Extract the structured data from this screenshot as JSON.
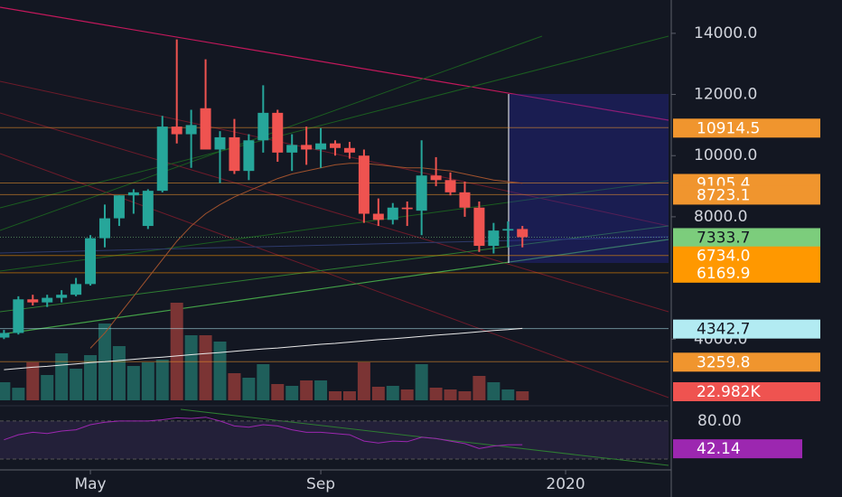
{
  "chart_data": {
    "type": "candlestick",
    "categories": [
      null,
      null,
      null,
      null,
      null,
      null,
      "May",
      null,
      null,
      null,
      null,
      null,
      null,
      null,
      null,
      null,
      null,
      null,
      null,
      null,
      null,
      null,
      "Sep",
      null,
      null,
      null,
      null,
      null,
      null,
      null,
      null,
      null,
      null,
      null,
      null,
      null,
      null,
      null,
      null,
      "2020"
    ],
    "open": [
      4050,
      4200,
      5300,
      5200,
      5350,
      5450,
      5800,
      7300,
      7950,
      8700,
      7700,
      8850,
      10950,
      10700,
      11550,
      10200,
      10600,
      9500,
      10500,
      11400,
      10100,
      10350,
      10200,
      10400,
      10250,
      10000,
      8100,
      7900,
      8300,
      8200,
      9350,
      9200,
      8800,
      8300,
      7050,
      7550,
      7600,
      null,
      null,
      null
    ],
    "high": [
      4300,
      5400,
      5450,
      5450,
      5600,
      6000,
      7400,
      8400,
      8700,
      8900,
      8900,
      11300,
      13800,
      11500,
      13150,
      10800,
      11200,
      10700,
      12300,
      11500,
      10700,
      10950,
      10900,
      10500,
      10450,
      10200,
      8600,
      8450,
      8500,
      10500,
      9950,
      9450,
      9150,
      8500,
      7800,
      7850,
      7700,
      null,
      null,
      null
    ],
    "low": [
      4000,
      4150,
      5100,
      5050,
      5200,
      5400,
      5750,
      7000,
      7700,
      8100,
      7600,
      8800,
      10400,
      9600,
      10300,
      9100,
      9400,
      9200,
      10100,
      9800,
      9500,
      9700,
      9600,
      10000,
      9900,
      7800,
      7700,
      7750,
      7700,
      7400,
      9000,
      8700,
      8000,
      6850,
      6800,
      7000,
      7000,
      null,
      null,
      null
    ],
    "close": [
      4200,
      5300,
      5200,
      5350,
      5450,
      5800,
      7300,
      7950,
      8700,
      8800,
      8850,
      10950,
      10700,
      11000,
      10200,
      10600,
      9500,
      10500,
      11400,
      10100,
      10350,
      10200,
      10400,
      10250,
      10100,
      8100,
      7900,
      8300,
      8250,
      9350,
      9200,
      8800,
      8300,
      7050,
      7550,
      7600,
      7333.7,
      null,
      null,
      null
    ],
    "volume": [
      46000,
      32000,
      96600,
      64400,
      119600,
      80500,
      115000,
      195500,
      138000,
      87400,
      96600,
      103500,
      248400,
      165600,
      165600,
      149500,
      69000,
      57500,
      92000,
      41400,
      36800,
      50600,
      50600,
      23000,
      23000,
      96600,
      34500,
      36800,
      27600,
      92000,
      32200,
      27600,
      23000,
      62100,
      46000,
      27600,
      22982,
      null,
      null,
      null
    ],
    "up_color": "#26a69a",
    "down_color": "#ef5350",
    "lines": [
      {
        "color": "#e8e8e8",
        "values": [
          3000,
          3040,
          3080,
          3110,
          3150,
          3190,
          3230,
          3260,
          3300,
          3340,
          3380,
          3410,
          3450,
          3490,
          3530,
          3560,
          3600,
          3640,
          3680,
          3710,
          3750,
          3790,
          3830,
          3860,
          3900,
          3940,
          3980,
          4010,
          4050,
          4090,
          4130,
          4160,
          4200,
          4240,
          4280,
          4310,
          4350,
          null,
          null,
          null
        ]
      },
      {
        "color": "#a0522d",
        "values": [
          null,
          null,
          null,
          null,
          null,
          null,
          3700,
          4200,
          4800,
          5400,
          6000,
          6600,
          7200,
          7700,
          8100,
          8400,
          8650,
          8850,
          9050,
          9250,
          9400,
          9500,
          9600,
          9700,
          9750,
          9750,
          9700,
          9650,
          9600,
          9600,
          9550,
          9500,
          9400,
          9300,
          9200,
          9150,
          9100,
          null,
          null,
          null
        ]
      }
    ],
    "ylim": [
      1850,
      15090
    ],
    "yticks": [
      {
        "value": 14000,
        "label": "14000.0"
      },
      {
        "value": 12000,
        "label": "12000.0"
      },
      {
        "value": 10000,
        "label": "10000.0"
      },
      {
        "value": 8000,
        "label": "8000.0"
      },
      {
        "value": 4000,
        "label": "4000.0"
      }
    ],
    "price_tags": [
      {
        "value": 10914.5,
        "label": "10914.5",
        "color": "#f0952e"
      },
      {
        "value": 9105.4,
        "label": "9105.4",
        "color": "#f0952e"
      },
      {
        "value": 8723.1,
        "label": "8723.1",
        "color": "#f0952e"
      },
      {
        "value": 7333.7,
        "label": "7333.7",
        "color": "#7ccd7c"
      },
      {
        "value": 6734.0,
        "label": "6734.0",
        "color": "#ff9800"
      },
      {
        "value": 6169.9,
        "label": "6169.9",
        "color": "#ff9800"
      },
      {
        "value": 4342.7,
        "label": "4342.7",
        "color": "#b2ebf2"
      },
      {
        "value": 3259.8,
        "label": "3259.8",
        "color": "#f0952e"
      }
    ],
    "volume_tag": {
      "value": 22982,
      "label": "22.982K",
      "color": "#ef5350"
    },
    "rsi": {
      "color": "#9c27b0",
      "ylim": [
        2,
        100
      ],
      "yticks": [
        {
          "value": 80,
          "label": "80.00"
        }
      ],
      "values": [
        50,
        58,
        62,
        60,
        64,
        66,
        74,
        78,
        80,
        80,
        80,
        82,
        85,
        84,
        86,
        80,
        72,
        70,
        74,
        72,
        66,
        62,
        62,
        60,
        58,
        48,
        45,
        48,
        47,
        54,
        52,
        48,
        44,
        36,
        40,
        42,
        42.14,
        null,
        null,
        null
      ]
    }
  }
}
